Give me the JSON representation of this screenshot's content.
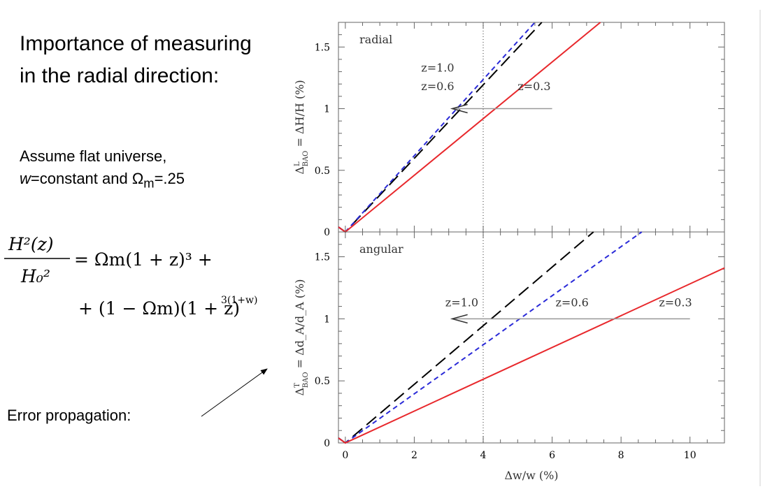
{
  "slide": {
    "heading": "Importance of measuring in the radial direction:",
    "assumption_line1": "Assume flat universe,",
    "assumption_w": "w",
    "assumption_mid": "=constant and Ω",
    "assumption_sub": "m",
    "assumption_end": "=.25",
    "error_label": "Error propagation:"
  },
  "equation": {
    "lhs_num": "H²(z)",
    "lhs_den": "H₀²",
    "rhs1": "= Ωm(1 + z)³ +",
    "rhs2": "+ (1 − Ωm)(1 + z)",
    "rhs2_exp": "3(1+w)"
  },
  "colors": {
    "z1": "#000000",
    "z06": "#2a2ad8",
    "z03": "#e8282c",
    "arrow": "#999999"
  },
  "chart_data": [
    {
      "type": "line",
      "panel": "radial",
      "title": "radial",
      "xlabel": "Δw/w (%)",
      "ylabel_prefix": "Δ",
      "ylabel_sup": "L",
      "ylabel_sub": "BAO",
      "ylabel_rest": "= ΔH/H (%)",
      "xlim": [
        -0.2,
        11
      ],
      "ylim": [
        0,
        1.7
      ],
      "xticks": [
        0,
        2,
        4,
        6,
        8,
        10
      ],
      "yticks": [
        0,
        0.5,
        1,
        1.5
      ],
      "ytick_labels": [
        "0",
        "0.5",
        "1",
        "1.5"
      ],
      "vline_x": 4,
      "series": [
        {
          "name": "z=1.0",
          "style": "long-dash",
          "color": "#000000",
          "x": [
            -0.2,
            0,
            5.7
          ],
          "y": [
            0.04,
            0,
            1.7
          ]
        },
        {
          "name": "z=0.6",
          "style": "short-dash",
          "color": "#2a2ad8",
          "x": [
            -0.2,
            0,
            5.5
          ],
          "y": [
            0.04,
            0,
            1.7
          ]
        },
        {
          "name": "z=0.3",
          "style": "solid",
          "color": "#e8282c",
          "x": [
            -0.2,
            0,
            7.4
          ],
          "y": [
            0.04,
            0,
            1.7
          ]
        }
      ],
      "labels": [
        {
          "text": "z=1.0",
          "x": 2.2,
          "y": 1.3
        },
        {
          "text": "z=0.6",
          "x": 2.2,
          "y": 1.15
        },
        {
          "text": "z=0.3",
          "x": 5.0,
          "y": 1.15
        }
      ],
      "arrow": {
        "from_x": 6.0,
        "to_x": 3.1,
        "y": 1.0
      }
    },
    {
      "type": "line",
      "panel": "angular",
      "title": "angular",
      "xlabel": "Δw/w (%)",
      "ylabel_prefix": "Δ",
      "ylabel_sup": "T",
      "ylabel_sub": "BAO",
      "ylabel_rest": "= Δd_A/d_A (%)",
      "xlim": [
        -0.2,
        11
      ],
      "ylim": [
        0,
        1.7
      ],
      "xticks": [
        0,
        2,
        4,
        6,
        8,
        10
      ],
      "xtick_labels": [
        "0",
        "2",
        "4",
        "6",
        "8",
        "10"
      ],
      "yticks": [
        0,
        0.5,
        1,
        1.5
      ],
      "ytick_labels": [
        "0",
        "0.5",
        "1",
        "1.5"
      ],
      "vline_x": 4,
      "series": [
        {
          "name": "z=1.0",
          "style": "long-dash",
          "color": "#000000",
          "x": [
            -0.2,
            0,
            7.2
          ],
          "y": [
            0.04,
            0,
            1.7
          ]
        },
        {
          "name": "z=0.6",
          "style": "short-dash",
          "color": "#2a2ad8",
          "x": [
            -0.2,
            0,
            8.6
          ],
          "y": [
            0.04,
            0,
            1.7
          ]
        },
        {
          "name": "z=0.3",
          "style": "solid",
          "color": "#e8282c",
          "x": [
            -0.2,
            0,
            11
          ],
          "y": [
            0.04,
            0,
            1.41
          ]
        }
      ],
      "labels": [
        {
          "text": "z=1.0",
          "x": 2.9,
          "y": 1.1
        },
        {
          "text": "z=0.6",
          "x": 6.1,
          "y": 1.1
        },
        {
          "text": "z=0.3",
          "x": 9.1,
          "y": 1.1
        }
      ],
      "arrow": {
        "from_x": 10.0,
        "to_x": 3.1,
        "y": 1.0
      }
    }
  ]
}
